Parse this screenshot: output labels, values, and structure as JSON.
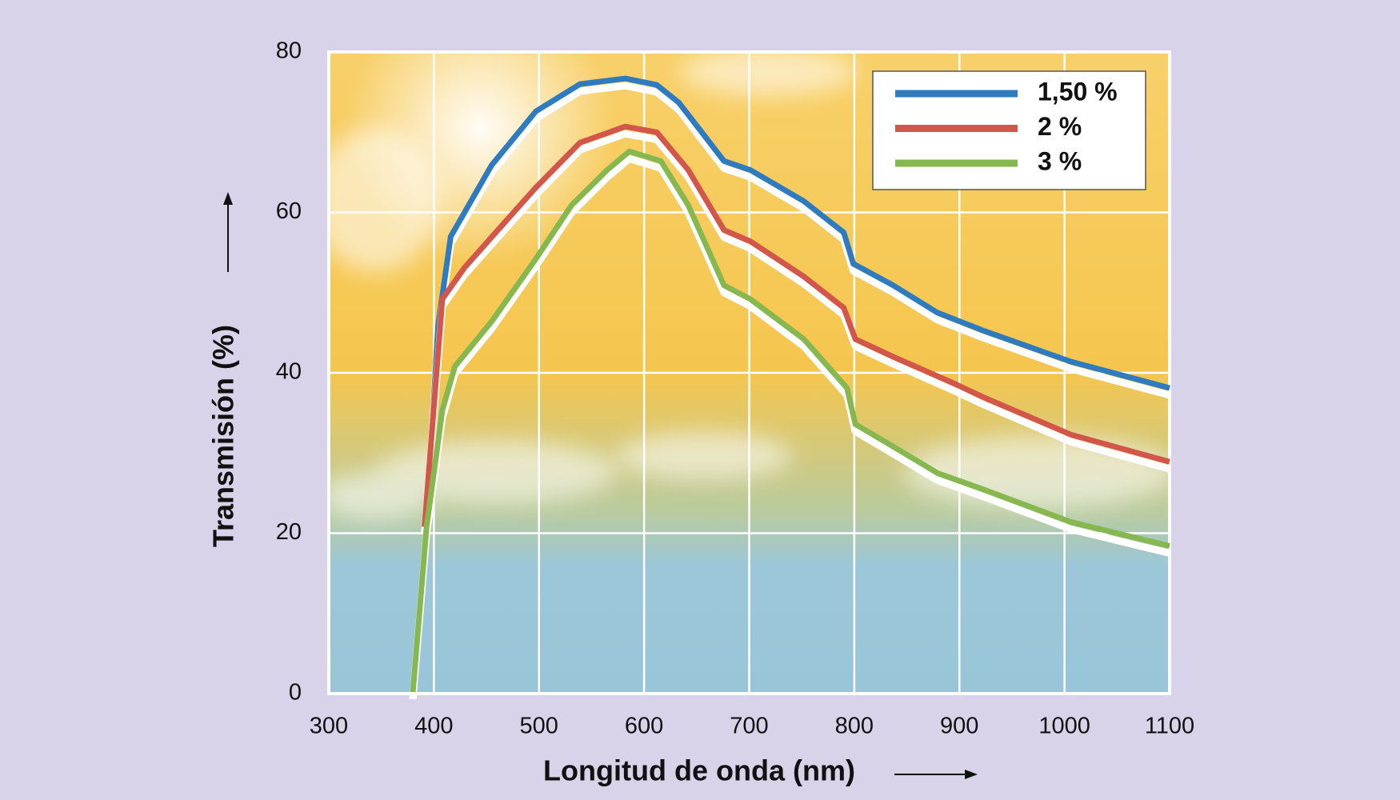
{
  "chart_data": {
    "type": "line",
    "x_label": "Longitud de onda (nm)",
    "y_label": "Transmisión (%)",
    "xlim": [
      300,
      1100
    ],
    "xticks": [
      300,
      400,
      500,
      600,
      700,
      800,
      900,
      1000,
      1100
    ],
    "ylim": [
      0,
      80
    ],
    "yticks": [
      0,
      20,
      40,
      60,
      80
    ],
    "grid": true,
    "legend": "top-right",
    "series": [
      {
        "name": "1,50 %",
        "color": "#2f7bc0",
        "x": [
          393,
          404,
          416,
          455,
          497,
          539,
          582,
          612,
          633,
          676,
          701,
          752,
          790,
          799,
          837,
          879,
          922,
          1006,
          1100
        ],
        "values": [
          20.8,
          45.9,
          57,
          65.9,
          72.6,
          76,
          76.7,
          75.9,
          73.7,
          66.4,
          65.3,
          61.4,
          57.5,
          53.6,
          50.9,
          47.5,
          45.3,
          41.4,
          38.1
        ]
      },
      {
        "name": "2 %",
        "color": "#d2574a",
        "x": [
          391,
          408,
          429,
          463,
          497,
          539,
          582,
          612,
          642,
          676,
          701,
          752,
          790,
          801,
          837,
          896,
          922,
          1006,
          1100
        ],
        "values": [
          20.8,
          49.2,
          53.1,
          58.1,
          63.1,
          68.7,
          70.7,
          70,
          65.3,
          57.8,
          56.4,
          52,
          48.1,
          44.2,
          42,
          38.6,
          37,
          32.3,
          28.9
        ]
      },
      {
        "name": "3 %",
        "color": "#86b84f",
        "x": [
          380,
          393,
          408,
          420,
          455,
          497,
          531,
          565,
          586,
          616,
          642,
          676,
          701,
          752,
          793,
          801,
          837,
          879,
          922,
          1006,
          1100
        ],
        "values": [
          0.2,
          20.8,
          35.3,
          40.8,
          46.4,
          54.2,
          60.9,
          65.3,
          67.6,
          66.4,
          60.9,
          50.9,
          49.2,
          44.2,
          38.1,
          33.6,
          30.8,
          27.5,
          25.5,
          21.4,
          18.4
        ]
      }
    ]
  }
}
